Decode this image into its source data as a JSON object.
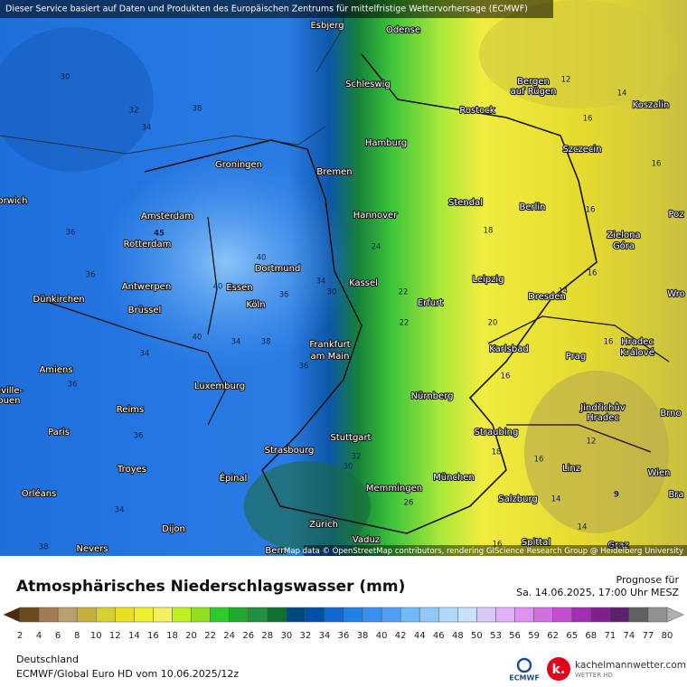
{
  "header": {
    "notice": "Dieser Service basiert auf Daten und Produkten des Europäischen Zentrums für mittelfristige Wettervorhersage (ECMWF)",
    "attribution": "Map data © OpenStreetMap contributors, rendering GIScience Research Group @ Heidelberg University"
  },
  "map": {
    "cities": [
      "Esbjerg",
      "Odense",
      "Schleswig",
      "Bergen",
      "auf Rügen",
      "Koszalin",
      "Rostock",
      "Hamburg",
      "Szczecin",
      "Groningen",
      "Bremen",
      "orwich",
      "Amsterdam",
      "Hannover",
      "Stendal",
      "Berlin",
      "Zielona",
      "Góra",
      "Poz",
      "Rotterdam",
      "Dortmund",
      "Antwerpen",
      "Essen",
      "Kassel",
      "Leipzig",
      "Wro",
      "Dünkirchen",
      "Brüssel",
      "Köln",
      "Erfurt",
      "Dresden",
      "Frankfurt",
      "am Main",
      "Karlsbad",
      "Hradec",
      "Králové",
      "Prag",
      "Amiens",
      "eville-",
      "ouen",
      "Luxemburg",
      "Nürnberg",
      "Reims",
      "Jindřichův",
      "Hradec",
      "Brno",
      "Paris",
      "Stuttgart",
      "Straubing",
      "Strasbourg",
      "Troyes",
      "Épinal",
      "München",
      "Linz",
      "Wien",
      "Orléans",
      "Memmingen",
      "Salzburg",
      "Bra",
      "Dijon",
      "Zürich",
      "Vaduz",
      "Nevers",
      "Bern",
      "Spittal",
      "Graz"
    ],
    "contour_labels": [
      30,
      32,
      38,
      34,
      36,
      45,
      36,
      40,
      40,
      36,
      34,
      30,
      40,
      34,
      34,
      38,
      36,
      36,
      36,
      34,
      38,
      32,
      30,
      24,
      22,
      22,
      20,
      18,
      16,
      18,
      16,
      14,
      14,
      16,
      16,
      14,
      16,
      12,
      9,
      12,
      14,
      16,
      16,
      26,
      16
    ]
  },
  "legend": {
    "title": "Atmosphärisches Niederschlagswasser (mm)",
    "ticks": [
      2,
      4,
      6,
      8,
      10,
      12,
      14,
      16,
      18,
      20,
      22,
      24,
      26,
      28,
      30,
      32,
      34,
      36,
      38,
      40,
      42,
      44,
      46,
      48,
      50,
      53,
      56,
      59,
      62,
      65,
      68,
      71,
      74,
      77,
      80
    ],
    "colors": [
      "#4a2c0a",
      "#6b4a1a",
      "#a27c55",
      "#b8a070",
      "#c8b040",
      "#d8d030",
      "#e8e020",
      "#f0f030",
      "#f2f060",
      "#c0f020",
      "#90e020",
      "#30c830",
      "#20a830",
      "#209040",
      "#107030",
      "#004a80",
      "#0050a8",
      "#1068d0",
      "#2080e8",
      "#3890f0",
      "#50a0f8",
      "#70b8f8",
      "#90c8f8",
      "#b0d8f8",
      "#c8e0f8",
      "#d8c8f8",
      "#e0b0f8",
      "#e090f0",
      "#d070e0",
      "#c050d0",
      "#a030b0",
      "#802090",
      "#602070",
      "#606060",
      "#909090",
      "#b0b0b0"
    ]
  },
  "footer": {
    "forecast_label": "Prognose für",
    "forecast_time": "Sa. 14.06.2025, 17:00 Uhr MESZ",
    "region": "Deutschland",
    "model_run": "ECMWF/Global Euro HD vom  10.06.2025/12z",
    "logo_ecmwf": "ECMWF",
    "logo_site": "kachelmannwetter.com",
    "logo_sub": "WETTER HD"
  }
}
